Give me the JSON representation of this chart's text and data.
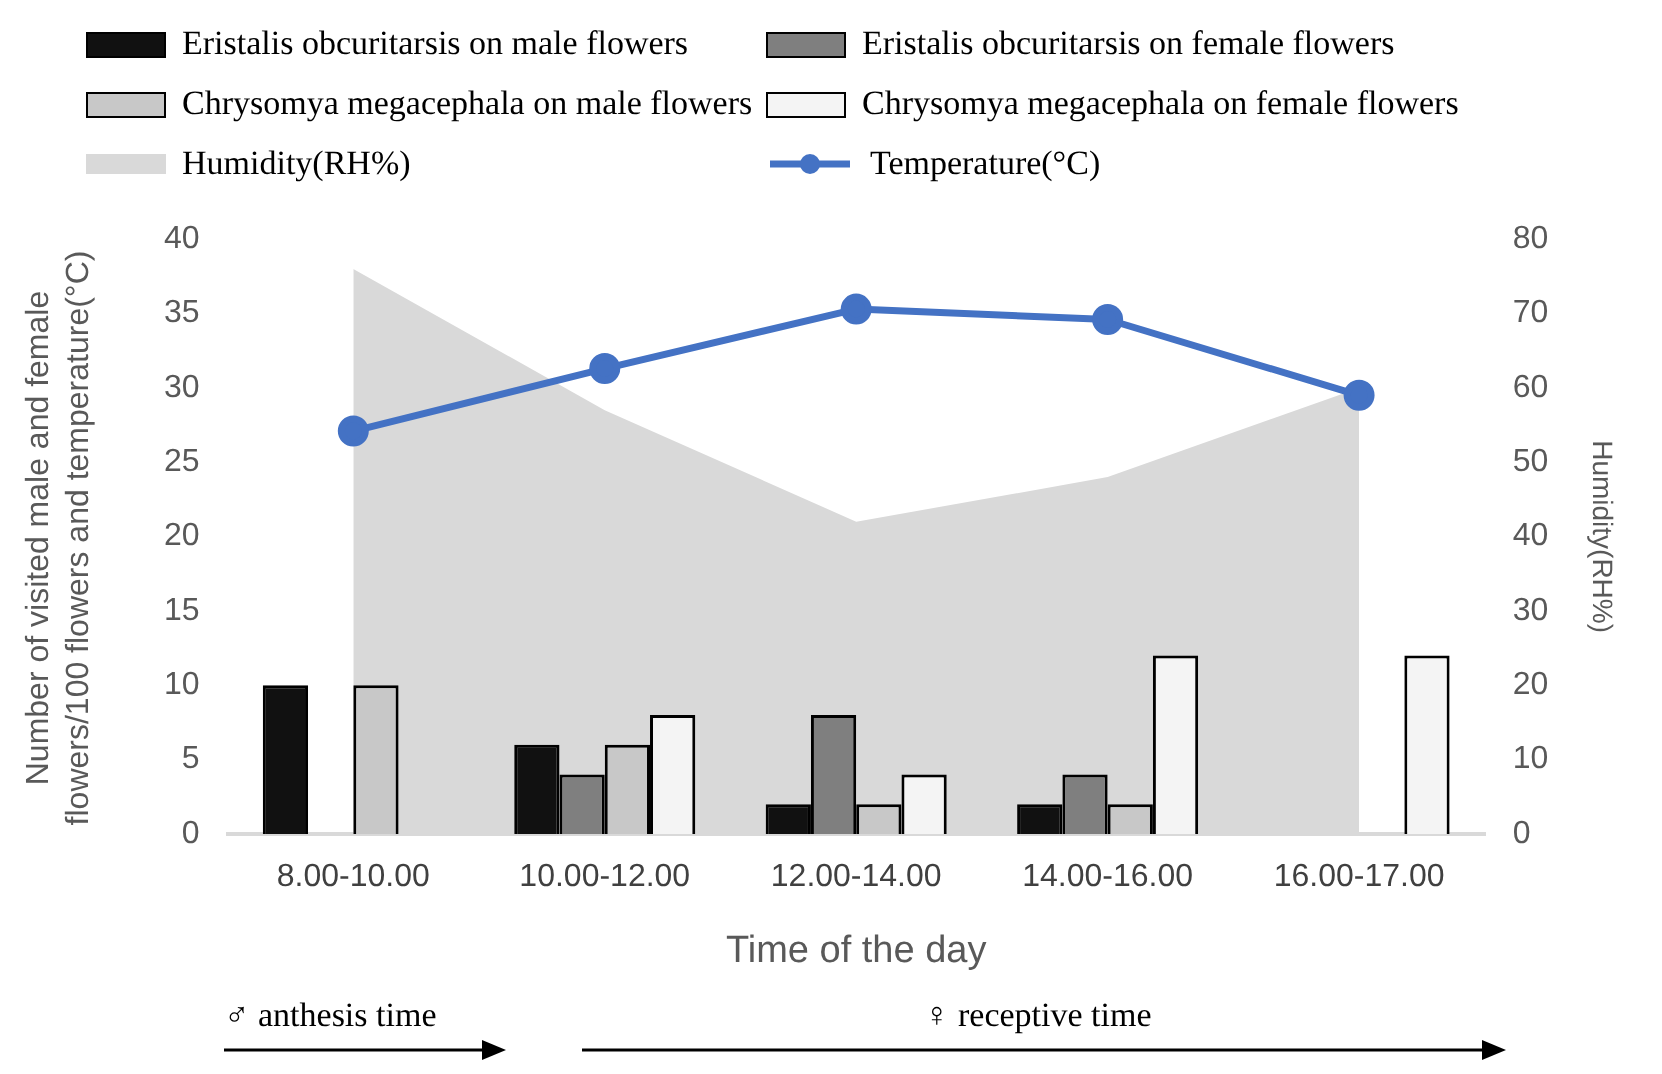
{
  "chart_data": {
    "type": "bar",
    "xlabel": "Time of the day",
    "ylabel": "Number of visited male and female flowers/100 flowers  and temperature(°C)",
    "y2label": "Humidity(RH%)",
    "categories": [
      "8.00-10.00",
      "10.00-12.00",
      "12.00-14.00",
      "14.00-16.00",
      "16.00-17.00"
    ],
    "series": [
      {
        "name": "Eristalis obcuritarsis on male flowers",
        "color": "#111111",
        "values": [
          10,
          6,
          2,
          2,
          null
        ]
      },
      {
        "name": "Eristalis obcuritarsis on female flowers",
        "color": "#7f7f7f",
        "values": [
          null,
          4,
          8,
          4,
          null
        ]
      },
      {
        "name": "Chrysomya megacephala on male flowers",
        "color": "#c8c8c8",
        "values": [
          10,
          6,
          2,
          2,
          null
        ]
      },
      {
        "name": "Chrysomya megacephala on female flowers",
        "color": "#f4f4f4",
        "values": [
          null,
          8,
          4,
          12,
          12
        ]
      },
      {
        "name": "Humidity(RH%)",
        "type": "area",
        "axis": "y2",
        "color": "#d9d9d9",
        "values": [
          76,
          57,
          42,
          48,
          60
        ]
      },
      {
        "name": "Temperature(°C)",
        "type": "line",
        "marker": "circle",
        "color": "#4472c4",
        "values": [
          27.1,
          31.3,
          35.3,
          34.6,
          29.5
        ]
      }
    ],
    "ylim": [
      0,
      40
    ],
    "yticks": [
      0,
      5,
      10,
      15,
      20,
      25,
      30,
      35,
      40
    ],
    "y2lim": [
      0,
      80
    ],
    "y2ticks": [
      0,
      10,
      20,
      30,
      40,
      50,
      60,
      70,
      80
    ],
    "grid": false,
    "legend": "top",
    "annotations": [
      "♂ anthesis time",
      "♀ receptive time"
    ]
  }
}
